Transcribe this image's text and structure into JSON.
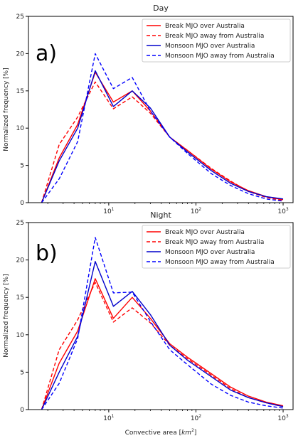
{
  "figure": {
    "xlabel_main": "Convective area [",
    "xlabel_unit": "km",
    "xlabel_exp": "2",
    "xlabel_end": "]"
  },
  "chart_data": [
    {
      "type": "line",
      "panel_label": "a)",
      "title": "Day",
      "ylabel": "Normalized frequency [%]",
      "xlabel": "",
      "xscale": "log",
      "xlim": [
        1.2,
        1300
      ],
      "ylim": [
        0,
        25
      ],
      "yticks": [
        "0",
        "5",
        "10",
        "15",
        "20",
        "25"
      ],
      "xticks": [
        {
          "value": 10,
          "base": "10",
          "exp": "1"
        },
        {
          "value": 100,
          "base": "10",
          "exp": "2"
        },
        {
          "value": 1000,
          "base": "10",
          "exp": "3"
        }
      ],
      "legend_position": "top-right",
      "x": [
        1.7,
        2.7,
        4.4,
        7.0,
        11.3,
        18.6,
        30,
        50,
        80,
        150,
        250,
        400,
        640,
        1000
      ],
      "series": [
        {
          "name": "Break MJO over Australia",
          "color": "#ff0000",
          "dash": "solid",
          "values": [
            0,
            6.0,
            10.5,
            17.5,
            13.5,
            15.0,
            12.3,
            8.8,
            7.0,
            4.5,
            2.8,
            1.6,
            0.8,
            0.4
          ]
        },
        {
          "name": "Break MJO away from Australia",
          "color": "#ff0000",
          "dash": "dashed",
          "values": [
            0,
            7.8,
            11.5,
            16.2,
            12.6,
            14.2,
            12.0,
            8.8,
            7.0,
            4.6,
            2.9,
            1.5,
            0.7,
            0.3
          ]
        },
        {
          "name": "Monsoon MJO over Australia",
          "color": "#0000cc",
          "dash": "solid",
          "values": [
            0,
            5.6,
            10.0,
            17.7,
            12.9,
            15.0,
            12.7,
            8.8,
            6.8,
            4.3,
            2.6,
            1.5,
            0.8,
            0.5
          ]
        },
        {
          "name": "Monsoon MJO away from Australia",
          "color": "#0000ff",
          "dash": "dashed",
          "values": [
            0,
            3.2,
            8.2,
            20.0,
            15.3,
            16.8,
            12.3,
            8.8,
            6.6,
            3.9,
            2.3,
            1.2,
            0.5,
            0.2
          ]
        }
      ]
    },
    {
      "type": "line",
      "panel_label": "b)",
      "title": "Night",
      "ylabel": "Normalized frequency [%]",
      "xlabel": "Convective area [km2]",
      "xscale": "log",
      "xlim": [
        1.2,
        1300
      ],
      "ylim": [
        0,
        25
      ],
      "yticks": [
        "0",
        "5",
        "10",
        "15",
        "20",
        "25"
      ],
      "xticks": [
        {
          "value": 10,
          "base": "10",
          "exp": "1"
        },
        {
          "value": 100,
          "base": "10",
          "exp": "2"
        },
        {
          "value": 1000,
          "base": "10",
          "exp": "3"
        }
      ],
      "legend_position": "top-right",
      "x": [
        1.7,
        2.7,
        4.4,
        7.0,
        11.3,
        18.6,
        30,
        50,
        80,
        150,
        250,
        400,
        640,
        1000
      ],
      "series": [
        {
          "name": "Break MJO over Australia",
          "color": "#ff0000",
          "dash": "solid",
          "values": [
            0,
            6.2,
            10.5,
            17.5,
            12.2,
            15.0,
            12.2,
            8.8,
            7.0,
            4.8,
            3.0,
            1.8,
            1.0,
            0.5
          ]
        },
        {
          "name": "Break MJO away from Australia",
          "color": "#ff0000",
          "dash": "dashed",
          "values": [
            0,
            8.0,
            12.0,
            17.0,
            11.7,
            13.6,
            11.6,
            8.6,
            6.8,
            4.6,
            2.8,
            1.6,
            0.9,
            0.4
          ]
        },
        {
          "name": "Monsoon MJO over Australia",
          "color": "#0000cc",
          "dash": "solid",
          "values": [
            0,
            5.0,
            9.8,
            19.8,
            13.8,
            15.8,
            12.7,
            8.6,
            6.6,
            4.4,
            2.6,
            1.6,
            0.9,
            0.4
          ]
        },
        {
          "name": "Monsoon MJO away from Australia",
          "color": "#0000ff",
          "dash": "dashed",
          "values": [
            0,
            3.5,
            9.5,
            23.0,
            15.6,
            15.7,
            11.8,
            8.0,
            6.0,
            3.4,
            1.9,
            1.0,
            0.5,
            0.2
          ]
        }
      ]
    }
  ]
}
